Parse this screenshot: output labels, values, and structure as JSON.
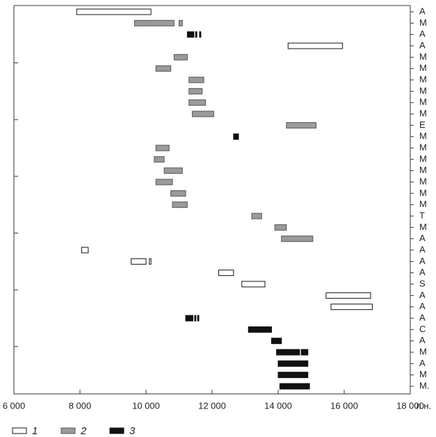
{
  "chart_data": {
    "type": "range_bar",
    "categories": [
      "A",
      "M",
      "A",
      "A",
      "M",
      "M",
      "M",
      "M",
      "M",
      "M",
      "E",
      "M",
      "M",
      "M",
      "M",
      "M",
      "M",
      "M",
      "T",
      "M",
      "A",
      "A",
      "A",
      "A",
      "S",
      "A",
      "A",
      "A",
      "C",
      "A",
      "M",
      "A",
      "M",
      "M."
    ],
    "x_label": "л.н.",
    "xlim": [
      6000,
      18000
    ],
    "xticks": [
      {
        "value": 6000,
        "label": "6 000"
      },
      {
        "value": 8000,
        "label": "8 000"
      },
      {
        "value": 10000,
        "label": "10 000"
      },
      {
        "value": 12000,
        "label": "12 000"
      },
      {
        "value": 14000,
        "label": "14 000"
      },
      {
        "value": 16000,
        "label": "16 000"
      },
      {
        "value": 18000,
        "label": "18 000"
      }
    ],
    "series": [
      {
        "name": "1",
        "color": "#ffffff",
        "values": [
          [
            [
              7900,
              10150
            ]
          ],
          null,
          null,
          [
            [
              14300,
              15950
            ]
          ],
          null,
          null,
          null,
          null,
          null,
          null,
          null,
          null,
          null,
          null,
          null,
          null,
          null,
          null,
          null,
          null,
          null,
          [
            [
              8050,
              8250
            ]
          ],
          [
            [
              9550,
              10000
            ],
            [
              10100,
              10150
            ]
          ],
          [
            [
              12200,
              12650
            ]
          ],
          [
            [
              12900,
              13600
            ]
          ],
          [
            [
              15450,
              16800
            ]
          ],
          [
            [
              15600,
              16850
            ]
          ],
          null,
          null,
          null,
          null,
          null,
          null,
          null
        ]
      },
      {
        "name": "2",
        "color": "#9a9a9a",
        "values": [
          null,
          [
            [
              9650,
              10850
            ],
            [
              11000,
              11100
            ]
          ],
          null,
          null,
          [
            [
              10850,
              11250
            ]
          ],
          [
            [
              10300,
              10750
            ]
          ],
          [
            [
              11300,
              11750
            ]
          ],
          [
            [
              11300,
              11700
            ]
          ],
          [
            [
              11300,
              11800
            ]
          ],
          [
            [
              11400,
              12050
            ]
          ],
          [
            [
              14250,
              15150
            ]
          ],
          null,
          [
            [
              10300,
              10700
            ]
          ],
          [
            [
              10250,
              10550
            ]
          ],
          [
            [
              10550,
              11100
            ]
          ],
          [
            [
              10300,
              10800
            ]
          ],
          [
            [
              10750,
              11200
            ]
          ],
          [
            [
              10800,
              11250
            ]
          ],
          [
            [
              13200,
              13500
            ]
          ],
          [
            [
              13900,
              14250
            ]
          ],
          [
            [
              14100,
              15050
            ]
          ],
          null,
          null,
          null,
          null,
          null,
          null,
          null,
          null,
          null,
          null,
          null,
          null,
          null
        ]
      },
      {
        "name": "3",
        "color": "#111111",
        "values": [
          null,
          null,
          [
            [
              11250,
              11450
            ],
            [
              11500,
              11540
            ],
            [
              11620,
              11660
            ]
          ],
          null,
          null,
          null,
          null,
          null,
          null,
          null,
          null,
          [
            [
              12650,
              12800
            ]
          ],
          null,
          null,
          null,
          null,
          null,
          null,
          null,
          null,
          null,
          null,
          null,
          null,
          null,
          null,
          null,
          [
            [
              11200,
              11420
            ],
            [
              11470,
              11510
            ],
            [
              11560,
              11600
            ]
          ],
          [
            [
              13100,
              13800
            ]
          ],
          [
            [
              13800,
              14100
            ]
          ],
          [
            [
              13950,
              14650
            ],
            [
              14700,
              14900
            ]
          ],
          [
            [
              14000,
              14900
            ]
          ],
          [
            [
              14000,
              14900
            ]
          ],
          [
            [
              14050,
              14950
            ]
          ]
        ]
      }
    ]
  }
}
